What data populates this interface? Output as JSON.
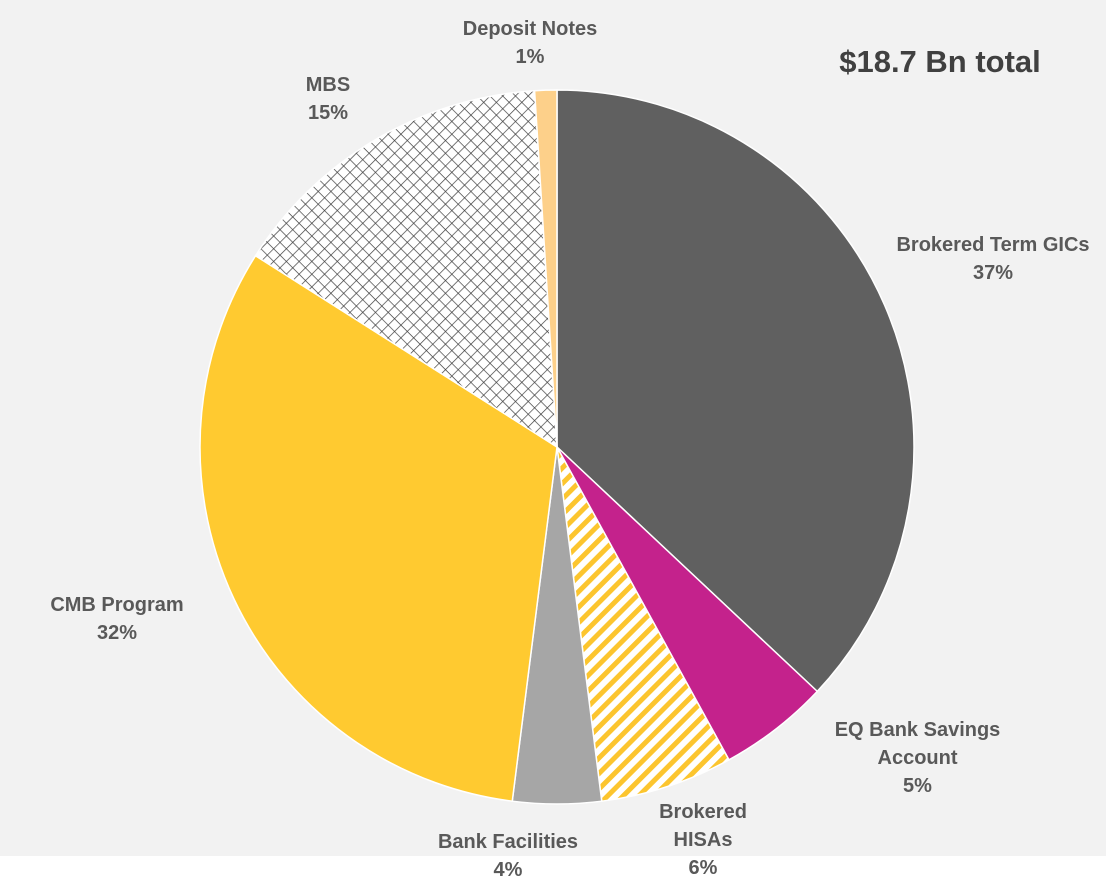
{
  "chart_data": {
    "type": "pie",
    "annotation": "$18.7 Bn total",
    "categories": [
      "Brokered Term GICs",
      "EQ Bank Savings Account",
      "Brokered HISAs",
      "Bank Facilities",
      "CMB Program",
      "MBS",
      "Deposit Notes"
    ],
    "values": [
      37,
      5,
      6,
      4,
      32,
      15,
      1
    ],
    "value_labels": [
      "37%",
      "5%",
      "6%",
      "4%",
      "32%",
      "15%",
      "1%"
    ],
    "colors": [
      "#606060",
      "#c4228c",
      "#fcc52e",
      "#a6a6a6",
      "#ffca30",
      "#3f3f3f",
      "#fdd08a"
    ],
    "patterns": [
      null,
      null,
      "diagonal",
      null,
      null,
      "crosshatch",
      null
    ]
  }
}
